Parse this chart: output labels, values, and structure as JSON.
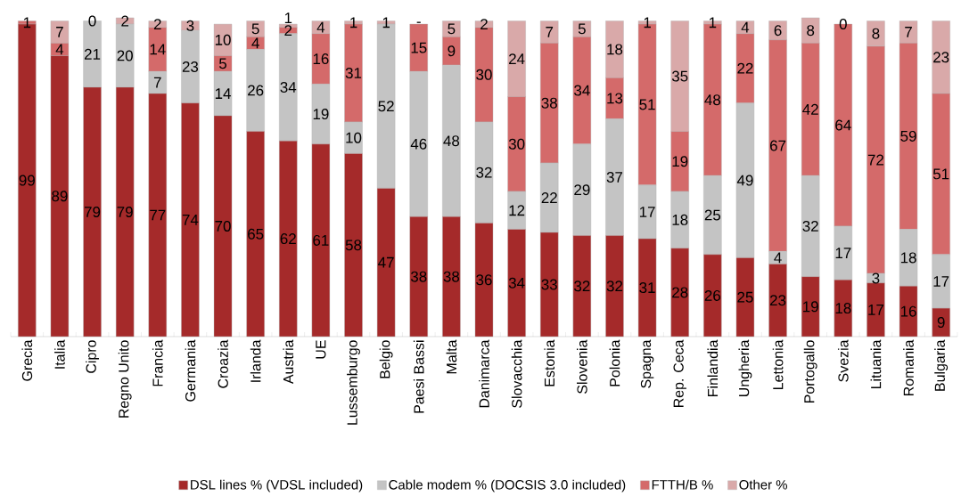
{
  "chart_data": {
    "type": "bar",
    "stacked": true,
    "legend": "bottom",
    "categories": [
      "Grecia",
      "Italia",
      "Cipro",
      "Regno Unito",
      "Francia",
      "Germania",
      "Croazia",
      "Irlanda",
      "Austria",
      "UE",
      "Lussemburgo",
      "Belgio",
      "Paesi Bassi",
      "Malta",
      "Danimarca",
      "Slovacchia",
      "Estonia",
      "Slovenia",
      "Polonia",
      "Spagna",
      "Rep. Ceca",
      "Finlandia",
      "Ungheria",
      "Lettonia",
      "Portogallo",
      "Svezia",
      "Lituania",
      "Romania",
      "Bulgaria"
    ],
    "series": [
      {
        "name": "DSL lines % (VDSL included)",
        "color": "#a52a2a",
        "values": [
          99,
          89,
          79,
          79,
          77,
          74,
          70,
          65,
          62,
          61,
          58,
          47,
          38,
          38,
          36,
          34,
          33,
          32,
          32,
          31,
          28,
          26,
          25,
          23,
          19,
          18,
          17,
          16,
          9
        ],
        "value_labels": [
          "99",
          "89",
          "79",
          "79",
          "77",
          "74",
          "70",
          "65",
          "62",
          "61",
          "58",
          "47",
          "38",
          "38",
          "36",
          "34",
          "33",
          "32",
          "32",
          "31",
          "28",
          "26",
          "25",
          "23",
          "19",
          "18",
          "17",
          "16",
          "9"
        ]
      },
      {
        "name": "Cable modem % (DOCSIS 3.0 included)",
        "color": "#c4c4c4",
        "values": [
          0,
          0,
          21,
          20,
          7,
          23,
          14,
          26,
          34,
          19,
          10,
          52,
          46,
          48,
          32,
          12,
          22,
          29,
          37,
          17,
          18,
          25,
          49,
          4,
          32,
          17,
          3,
          18,
          17
        ],
        "value_labels": [
          null,
          null,
          "21",
          "20",
          "7",
          "23",
          "14",
          "26",
          "34",
          "19",
          "10",
          "52",
          "46",
          "48",
          "32",
          "12",
          "22",
          "29",
          "37",
          "17",
          "18",
          "25",
          "49",
          "4",
          "32",
          "17",
          "3",
          "18",
          "17"
        ]
      },
      {
        "name": "FTTH/B %",
        "color": "#d46a6a",
        "values": [
          1,
          4,
          0,
          0,
          14,
          0,
          5,
          4,
          2,
          16,
          31,
          0,
          15,
          9,
          30,
          30,
          38,
          34,
          13,
          51,
          19,
          48,
          22,
          67,
          42,
          64,
          72,
          59,
          51
        ],
        "value_labels": [
          "1",
          "4",
          null,
          null,
          "14",
          null,
          "5",
          "4",
          "2",
          "16",
          "31",
          null,
          "15",
          "9",
          "30",
          "30",
          "38",
          "34",
          "13",
          "51",
          "19",
          "48",
          "22",
          "67",
          "42",
          "64",
          "72",
          "59",
          "51"
        ]
      },
      {
        "name": "Other %",
        "color": "#d9a9a9",
        "values": [
          0,
          7,
          0,
          2,
          2,
          3,
          10,
          5,
          1,
          4,
          1,
          1,
          null,
          5,
          2,
          24,
          7,
          5,
          18,
          1,
          35,
          1,
          4,
          6,
          8,
          0,
          8,
          7,
          23
        ],
        "value_labels": [
          null,
          "7",
          "0",
          "2",
          "2",
          "3",
          "10",
          "5",
          "1",
          "4",
          "1",
          "1",
          "-",
          "5",
          "2",
          "24",
          "7",
          "5",
          "18",
          "1",
          "35",
          "1",
          "4",
          "6",
          "8",
          "0",
          "8",
          "7",
          "23"
        ]
      }
    ]
  }
}
